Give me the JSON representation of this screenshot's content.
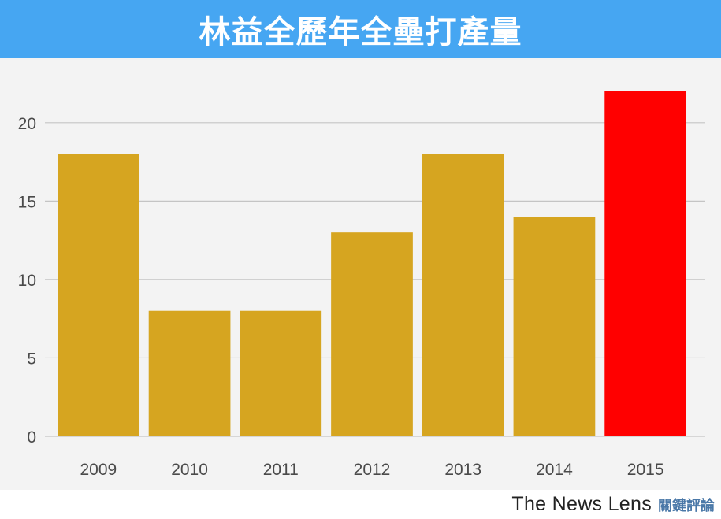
{
  "header": {
    "title": "林益全歷年全壘打產量"
  },
  "footer": {
    "brand_en": "The News Lens",
    "brand_zh": "關鍵評論"
  },
  "colors": {
    "bar": "#d6a520",
    "highlight": "#ff0000",
    "title_bg": "#46a6f2",
    "plot_bg": "#f3f3f3",
    "grid": "#c4c4c4"
  },
  "chart_data": {
    "type": "bar",
    "title": "林益全歷年全壘打產量",
    "xlabel": "",
    "ylabel": "",
    "categories": [
      "2009",
      "2010",
      "2011",
      "2012",
      "2013",
      "2014",
      "2015"
    ],
    "values": [
      18,
      8,
      8,
      13,
      18,
      14,
      22
    ],
    "highlight_category": "2015",
    "ylim": [
      0,
      22
    ],
    "yticks": [
      0,
      5,
      10,
      15,
      20
    ],
    "grid": true,
    "legend": "none"
  }
}
